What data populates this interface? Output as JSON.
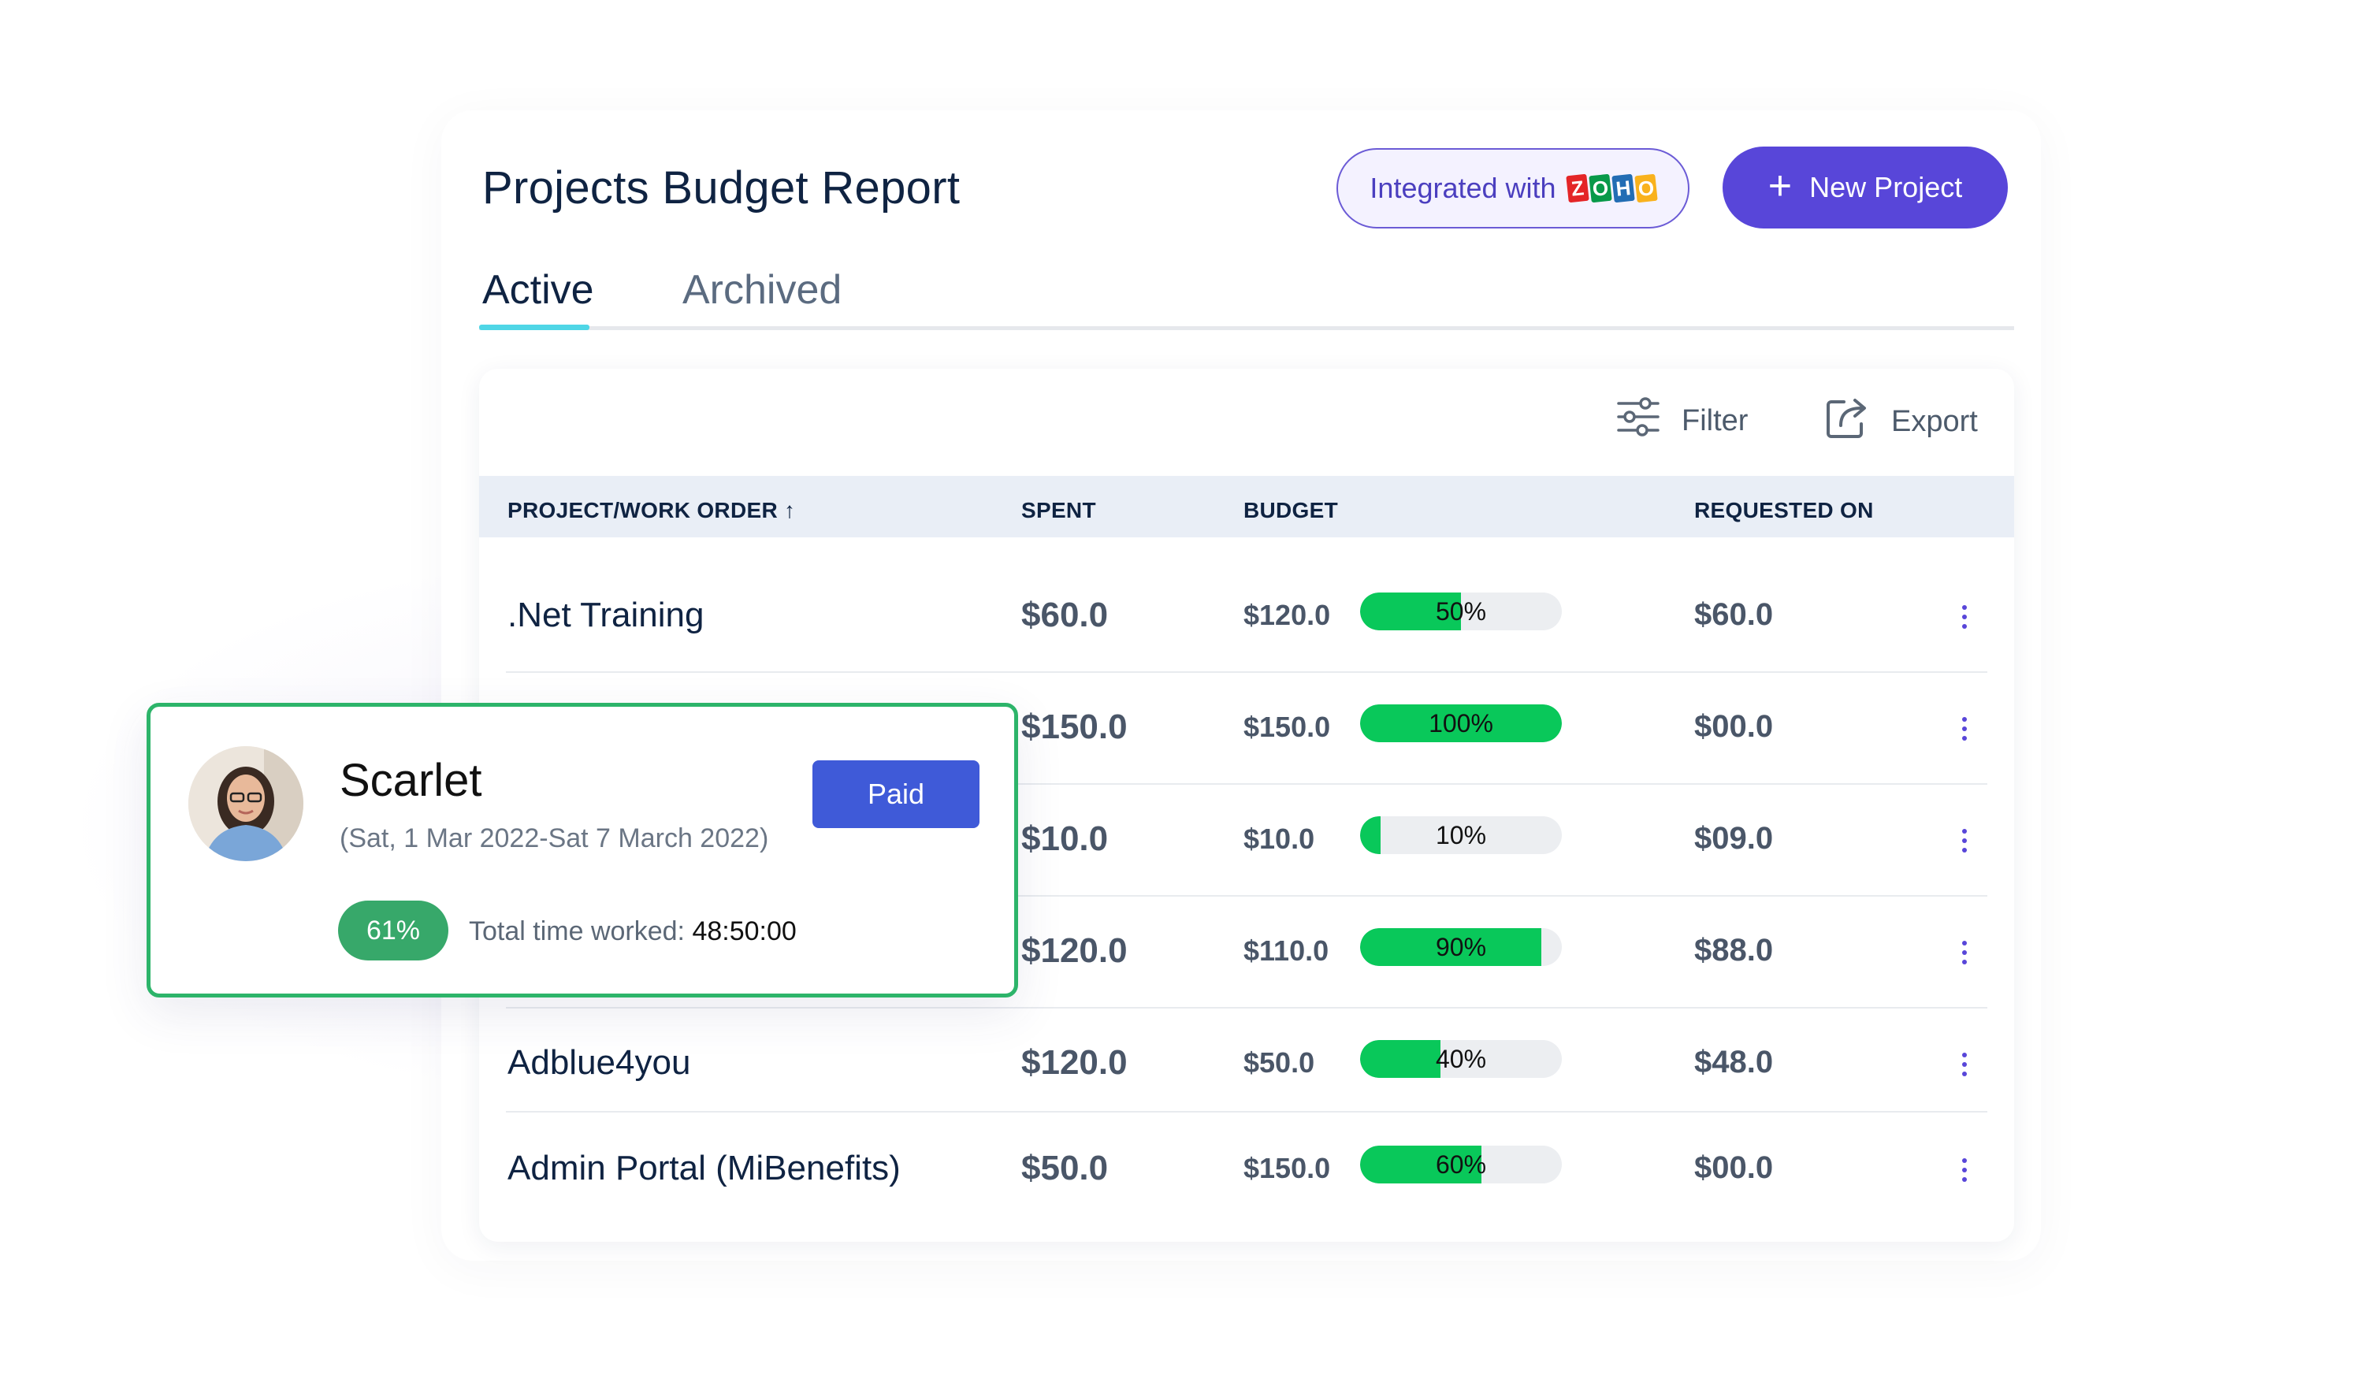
{
  "header": {
    "title": "Projects Budget Report",
    "integration_label": "Integrated with",
    "integration_logo_letters": [
      "Z",
      "O",
      "H",
      "O"
    ],
    "integration_logo_colors": [
      "#e42527",
      "#089949",
      "#226db4",
      "#f9b21d"
    ],
    "new_project_label": "New Project",
    "accent_color": "#5846d9"
  },
  "tabs": [
    {
      "label": "Active",
      "selected": true
    },
    {
      "label": "Archived",
      "selected": false
    }
  ],
  "toolbar": {
    "filter_label": "Filter",
    "export_label": "Export"
  },
  "table": {
    "columns": {
      "project": "PROJECT/WORK ORDER ↑",
      "spent": "SPENT",
      "budget": "BUDGET",
      "requested": "REQUESTED ON"
    },
    "rows": [
      {
        "name": ".Net Training",
        "spent": "$60.0",
        "budget": "$120.0",
        "progress": 0.5,
        "progress_label": "50%",
        "requested": "$60.0"
      },
      {
        "name": "",
        "spent": "$150.0",
        "budget": "$150.0",
        "progress": 1.0,
        "progress_label": "100%",
        "requested": "$00.0"
      },
      {
        "name": "",
        "spent": "$10.0",
        "budget": "$10.0",
        "progress": 0.1,
        "progress_label": "10%",
        "requested": "$09.0"
      },
      {
        "name": "",
        "spent": "$120.0",
        "budget": "$110.0",
        "progress": 0.9,
        "progress_label": "90%",
        "requested": "$88.0"
      },
      {
        "name": "Adblue4you",
        "spent": "$120.0",
        "budget": "$50.0",
        "progress": 0.4,
        "progress_label": "40%",
        "requested": "$48.0"
      },
      {
        "name": "Admin Portal (MiBenefits)",
        "spent": "$50.0",
        "budget": "$150.0",
        "progress": 0.6,
        "progress_label": "60%",
        "requested": "$00.0"
      }
    ]
  },
  "timesheet_card": {
    "name": "Scarlet",
    "date_range": "(Sat, 1 Mar 2022-Sat 7 March 2022)",
    "status": "Paid",
    "percent": "61%",
    "total_label": "Total time worked:",
    "total_value": "48:50:00"
  }
}
